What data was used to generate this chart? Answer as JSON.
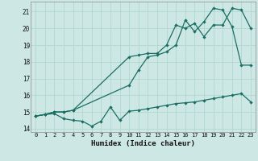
{
  "xlabel": "Humidex (Indice chaleur)",
  "bg_color": "#cde8e4",
  "grid_color": "#b0d8d0",
  "line_color": "#1a6e64",
  "xlim": [
    -0.5,
    23.5
  ],
  "ylim": [
    13.8,
    21.6
  ],
  "xticks": [
    0,
    1,
    2,
    3,
    4,
    5,
    6,
    7,
    8,
    9,
    10,
    11,
    12,
    13,
    14,
    15,
    16,
    17,
    18,
    19,
    20,
    21,
    22,
    23
  ],
  "yticks": [
    14,
    15,
    16,
    17,
    18,
    19,
    20,
    21
  ],
  "line1_x": [
    0,
    1,
    2,
    3,
    4,
    5,
    6,
    7,
    8,
    9,
    10,
    11,
    12,
    13,
    14,
    15,
    16,
    17,
    18,
    19,
    20,
    21,
    22,
    23
  ],
  "line1_y": [
    14.75,
    14.85,
    14.9,
    14.6,
    14.5,
    14.45,
    14.15,
    14.45,
    15.3,
    14.5,
    15.05,
    15.1,
    15.2,
    15.3,
    15.4,
    15.5,
    15.55,
    15.6,
    15.7,
    15.8,
    15.9,
    16.0,
    16.1,
    15.6
  ],
  "line2_x": [
    0,
    1,
    2,
    3,
    4,
    10,
    11,
    12,
    13,
    14,
    15,
    16,
    17,
    18,
    19,
    20,
    21,
    22,
    23
  ],
  "line2_y": [
    14.75,
    14.85,
    15.0,
    15.0,
    15.1,
    18.3,
    18.4,
    18.5,
    18.5,
    19.0,
    20.2,
    20.0,
    20.3,
    19.5,
    20.2,
    20.2,
    21.2,
    21.1,
    20.0
  ],
  "line3_x": [
    0,
    1,
    2,
    3,
    4,
    10,
    11,
    12,
    13,
    14,
    15,
    16,
    17,
    18,
    19,
    20,
    21,
    22,
    23
  ],
  "line3_y": [
    14.75,
    14.85,
    15.0,
    15.0,
    15.1,
    16.6,
    17.5,
    18.3,
    18.4,
    18.6,
    19.0,
    20.5,
    19.8,
    20.4,
    21.2,
    21.1,
    20.1,
    17.8,
    17.8
  ]
}
